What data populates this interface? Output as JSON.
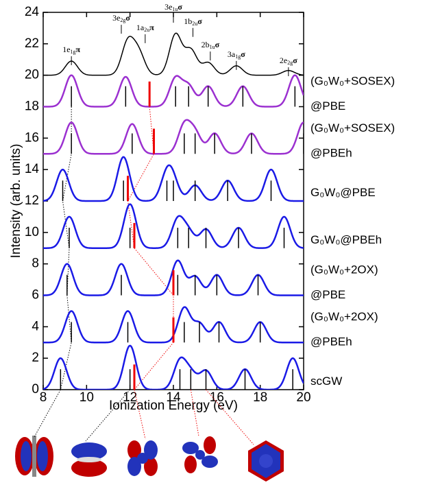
{
  "chart_data": {
    "type": "spectra",
    "xlabel": "Ionization Energy (eV)",
    "ylabel": "Intensity (arb. units)",
    "xlim": [
      8,
      20
    ],
    "xticks": [
      8,
      10,
      12,
      14,
      16,
      18,
      20
    ],
    "ylim": [
      0,
      24
    ],
    "yticks": [
      0,
      2,
      4,
      6,
      8,
      10,
      12,
      14,
      16,
      18,
      20,
      22,
      24
    ],
    "experiment": {
      "offset": 20,
      "color": "#000000",
      "sticks": [
        9.3,
        11.9,
        12.4,
        14.1,
        14.8,
        15.6,
        16.9,
        19.3
      ],
      "heights": [
        0.9,
        2.1,
        1.4,
        2.6,
        1.6,
        0.8,
        0.6,
        0.3
      ],
      "assignments": [
        {
          "text": "1e",
          "sub": "1g",
          "suffix": "π",
          "x": 9.3,
          "y": 21.6
        },
        {
          "text": "3e",
          "sub": "2g",
          "suffix": "σ",
          "x": 11.6,
          "y": 23.6
        },
        {
          "text": "1a",
          "sub": "2u",
          "suffix": "π",
          "x": 12.7,
          "y": 23.0
        },
        {
          "text": "3e",
          "sub": "1u",
          "suffix": "σ",
          "x": 14.0,
          "y": 24.3
        },
        {
          "text": "1b",
          "sub": "2u",
          "suffix": "σ",
          "x": 14.9,
          "y": 23.4
        },
        {
          "text": "2b",
          "sub": "1u",
          "suffix": "σ",
          "x": 15.7,
          "y": 21.9
        },
        {
          "text": "3a",
          "sub": "1g",
          "suffix": "σ",
          "x": 16.9,
          "y": 21.3
        },
        {
          "text": "2e",
          "sub": "2g",
          "suffix": "σ",
          "x": 19.3,
          "y": 20.9
        }
      ]
    },
    "series": [
      {
        "name": [
          "(G₀W₀+SOSEX)",
          "@PBE"
        ],
        "color": "#9b30d0",
        "offset": 18,
        "sticks": [
          9.3,
          11.8,
          14.1,
          14.7,
          15.6,
          17.2,
          19.6
        ],
        "heights": [
          2,
          1.9,
          1.8,
          1.3,
          1.3,
          1.3,
          2
        ],
        "red_stick": 12.9
      },
      {
        "name": [
          "(G₀W₀+SOSEX)",
          "@PBEh"
        ],
        "color": "#9b30d0",
        "offset": 15,
        "sticks": [
          9.3,
          12.1,
          14.5,
          15.0,
          15.9,
          17.6,
          20.0
        ],
        "heights": [
          2,
          1.9,
          1.8,
          1.3,
          1.3,
          1.3,
          2
        ],
        "red_stick": 13.1
      },
      {
        "name": [
          "G₀W₀@PBE"
        ],
        "color": "#1a1ae6",
        "offset": 12,
        "sticks": [
          8.9,
          11.7,
          13.7,
          14.0,
          15.0,
          16.5,
          18.5
        ],
        "heights": [
          2,
          2.8,
          1.6,
          1.0,
          1.0,
          1.3,
          2
        ],
        "red_stick": 11.9
      },
      {
        "name": [
          "G₀W₀@PBEh"
        ],
        "color": "#1a1ae6",
        "offset": 9,
        "sticks": [
          9.2,
          12.0,
          14.2,
          14.7,
          15.5,
          17.0,
          19.1
        ],
        "heights": [
          2,
          2.8,
          1.8,
          1.0,
          1.2,
          1.3,
          2
        ],
        "red_stick": 12.2
      },
      {
        "name": [
          "(G₀W₀+2OX)",
          "@PBE"
        ],
        "color": "#1a1ae6",
        "offset": 6,
        "sticks": [
          9.1,
          11.6,
          14.2,
          15.0,
          16.0,
          17.9
        ],
        "heights": [
          2,
          2,
          2.2,
          1.2,
          1.3,
          1.3
        ],
        "red_stick": 14.0
      },
      {
        "name": [
          "(G₀W₀+2OX)",
          "@PBEh"
        ],
        "color": "#1a1ae6",
        "offset": 3,
        "sticks": [
          9.3,
          11.9,
          14.5,
          15.2,
          16.1,
          18.0
        ],
        "heights": [
          2,
          2,
          2.2,
          1.2,
          1.3,
          1.3
        ],
        "red_stick": 14.0
      },
      {
        "name": [
          "scGW"
        ],
        "color": "#1a1ae6",
        "offset": 0,
        "sticks": [
          8.8,
          12.0,
          14.3,
          14.8,
          15.5,
          17.3,
          19.5
        ],
        "heights": [
          2,
          2.8,
          1.8,
          1.0,
          1.2,
          1.3,
          2
        ],
        "red_stick": 12.2
      }
    ]
  }
}
